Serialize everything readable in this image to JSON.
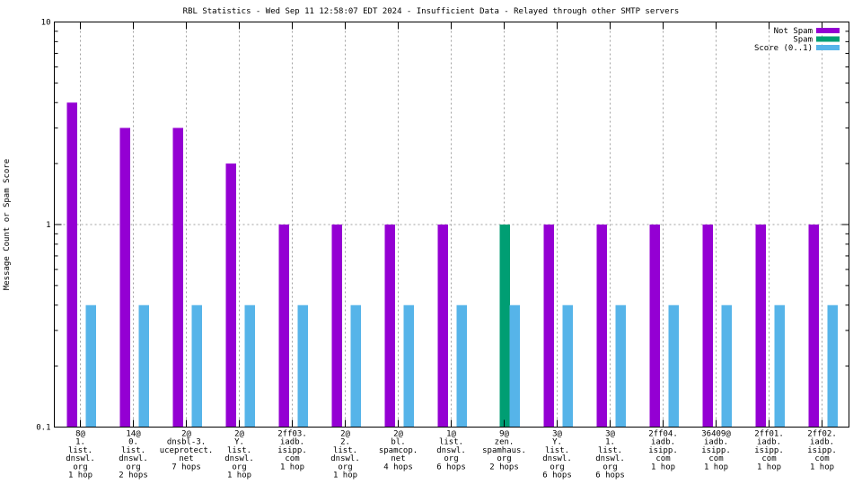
{
  "chart_data": {
    "type": "bar",
    "title": "RBL Statistics - Wed Sep 11 12:58:07 EDT 2024 - Insufficient Data - Relayed through other SMTP servers",
    "xlabel": "",
    "ylabel": "Message Count or Spam Score",
    "yscale": "log",
    "ylim": [
      0.1,
      10
    ],
    "yticks": [
      "10",
      "1",
      "0.1"
    ],
    "grid": true,
    "legend_position": "top-right",
    "categories": [
      [
        "8@",
        "1.",
        "list.",
        "dnswl.",
        "org",
        "1 hop"
      ],
      [
        "14@",
        "0.",
        "list.",
        "dnswl.",
        "org",
        "2 hops"
      ],
      [
        "2@",
        "dnsbl-3.",
        "uceprotect.",
        "net",
        "7 hops"
      ],
      [
        "2@",
        "Y.",
        "list.",
        "dnswl.",
        "org",
        "1 hop"
      ],
      [
        "2ff03.",
        "iadb.",
        "isipp.",
        "com",
        "1 hop"
      ],
      [
        "2@",
        "2.",
        "list.",
        "dnswl.",
        "org",
        "1 hop"
      ],
      [
        "2@",
        "bl.",
        "spamcop.",
        "net",
        "4 hops"
      ],
      [
        "1@",
        "list.",
        "dnswl.",
        "org",
        "6 hops"
      ],
      [
        "9@",
        "zen.",
        "spamhaus.",
        "org",
        "2 hops"
      ],
      [
        "3@",
        "Y.",
        "list.",
        "dnswl.",
        "org",
        "6 hops"
      ],
      [
        "3@",
        "1.",
        "list.",
        "dnswl.",
        "org",
        "6 hops"
      ],
      [
        "2ff04.",
        "iadb.",
        "isipp.",
        "com",
        "1 hop"
      ],
      [
        "36409@",
        "iadb.",
        "isipp.",
        "com",
        "1 hop"
      ],
      [
        "2ff01.",
        "iadb.",
        "isipp.",
        "com",
        "1 hop"
      ],
      [
        "2ff02.",
        "iadb.",
        "isipp.",
        "com",
        "1 hop"
      ]
    ],
    "series": [
      {
        "name": "Not Spam",
        "color": "#9400d3",
        "values": [
          4,
          3,
          3,
          2,
          1,
          1,
          1,
          1,
          0,
          1,
          1,
          1,
          1,
          1,
          1
        ]
      },
      {
        "name": "Spam",
        "color": "#009e73",
        "values": [
          0,
          0,
          0,
          0,
          0,
          0,
          0,
          0,
          1,
          0,
          0,
          0,
          0,
          0,
          0
        ]
      },
      {
        "name": "Score (0..1)",
        "color": "#56b4e9",
        "values": [
          0.4,
          0.4,
          0.4,
          0.4,
          0.4,
          0.4,
          0.4,
          0.4,
          0.4,
          0.4,
          0.4,
          0.4,
          0.4,
          0.4,
          0.4
        ]
      }
    ]
  }
}
